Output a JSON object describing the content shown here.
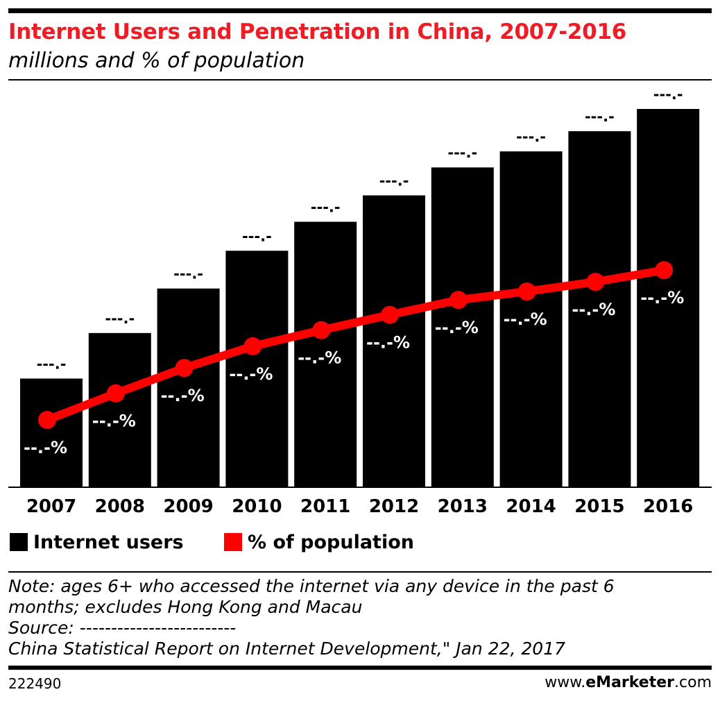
{
  "header": {
    "title": "Internet Users and Penetration in China, 2007-2016",
    "subtitle": "millions and % of population"
  },
  "chart_data": {
    "type": "bar",
    "categories": [
      "2007",
      "2008",
      "2009",
      "2010",
      "2011",
      "2012",
      "2013",
      "2014",
      "2015",
      "2016"
    ],
    "series": [
      {
        "name": "Internet users",
        "type": "bar",
        "color": "#000000",
        "values": [
          210,
          298,
          384,
          457,
          513,
          564,
          618,
          649,
          688,
          731
        ],
        "labels": [
          "---.-",
          "---.-",
          "---.-",
          "---.-",
          "---.-",
          "---.-",
          "---.-",
          "---.-",
          "---.-",
          "---.-"
        ]
      },
      {
        "name": "% of population",
        "type": "line",
        "color": "#ff0000",
        "values": [
          16.0,
          22.6,
          28.9,
          34.3,
          38.3,
          42.1,
          45.8,
          47.9,
          50.3,
          53.2
        ],
        "labels": [
          "--.-%",
          "--.-%",
          "--.-%",
          "--.-%",
          "--.-%",
          "--.-%",
          "--.-%",
          "--.-%",
          "--.-%",
          "--.-%"
        ]
      }
    ],
    "grid": false,
    "legend_position": "bottom-left"
  },
  "legend": {
    "users": "Internet users",
    "population": "% of population"
  },
  "notes": {
    "line1": "Note: ages 6+ who accessed the internet via any device in the past 6",
    "line2": "months; excludes Hong Kong and Macau",
    "line3": "Source: -------------------------",
    "line4": "China Statistical Report on Internet Development,\" Jan 22, 2017"
  },
  "footer": {
    "id": "222490",
    "brand_prefix": "www.",
    "brand_bold": "eMarketer",
    "brand_suffix": ".com"
  }
}
